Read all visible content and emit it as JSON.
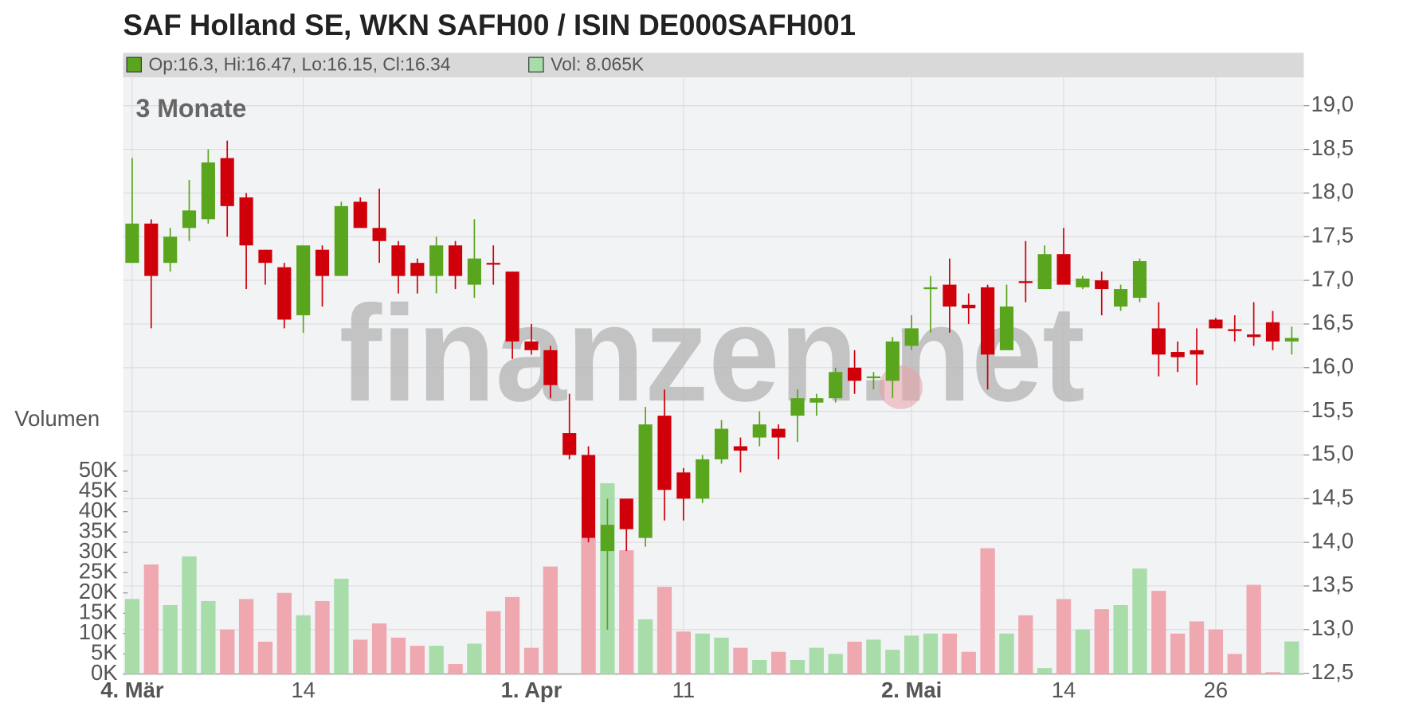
{
  "chart_data": {
    "type": "candlestick",
    "title": "SAF Holland SE, WKN SAFH00 / ISIN DE000SAFH001",
    "legend_ohlc": "Op:16.3, Hi:16.47, Lo:16.15, Cl:16.34",
    "legend_volume": "Vol: 8.065K",
    "period_label": "3 Monate",
    "volume_label": "Volumen",
    "watermark": "finanzen.net",
    "categories": [
      "4. Mär",
      null,
      null,
      null,
      null,
      null,
      null,
      null,
      null,
      "14",
      null,
      null,
      null,
      null,
      null,
      null,
      null,
      null,
      null,
      null,
      null,
      "1. Apr",
      null,
      null,
      null,
      null,
      null,
      null,
      null,
      "11",
      null,
      null,
      null,
      null,
      null,
      null,
      null,
      null,
      null,
      null,
      null,
      "2. Mai",
      null,
      null,
      null,
      null,
      null,
      null,
      null,
      "14",
      null,
      null,
      null,
      null,
      null,
      null,
      null,
      "26",
      null,
      null,
      null,
      null
    ],
    "open": [
      17.2,
      17.65,
      17.2,
      17.6,
      17.7,
      18.4,
      17.95,
      17.35,
      17.15,
      16.6,
      17.35,
      17.05,
      17.9,
      17.6,
      17.4,
      17.2,
      17.05,
      17.4,
      16.95,
      17.2,
      17.1,
      16.3,
      16.2,
      15.25,
      15.0,
      13.9,
      14.5,
      14.05,
      15.45,
      14.8,
      14.5,
      14.95,
      15.1,
      15.2,
      15.3,
      15.45,
      15.6,
      15.65,
      16.0,
      15.88,
      15.85,
      16.25,
      16.9,
      16.95,
      16.72,
      16.92,
      16.2,
      16.99,
      16.9,
      17.3,
      16.92,
      17.0,
      16.7,
      16.8,
      16.45,
      16.18,
      16.2,
      16.55,
      16.44,
      16.38,
      16.52,
      16.3
    ],
    "high": [
      18.4,
      17.7,
      17.6,
      18.15,
      18.5,
      18.6,
      18.0,
      17.35,
      17.2,
      17.4,
      17.4,
      17.9,
      17.95,
      18.05,
      17.45,
      17.25,
      17.5,
      17.45,
      17.7,
      17.4,
      17.1,
      16.5,
      16.25,
      15.7,
      15.1,
      14.5,
      14.5,
      15.55,
      15.75,
      14.85,
      15.0,
      15.4,
      15.2,
      15.5,
      15.35,
      15.75,
      15.7,
      16.0,
      16.2,
      15.95,
      16.35,
      16.6,
      17.05,
      17.25,
      16.85,
      16.95,
      16.95,
      17.45,
      17.4,
      17.6,
      17.05,
      17.1,
      16.95,
      17.25,
      16.75,
      16.3,
      16.45,
      16.57,
      16.6,
      16.75,
      16.65,
      16.47
    ],
    "low": [
      17.2,
      16.45,
      17.1,
      17.45,
      17.65,
      17.5,
      16.9,
      16.95,
      16.45,
      16.4,
      16.7,
      17.05,
      17.6,
      17.2,
      16.85,
      16.85,
      16.85,
      16.9,
      16.8,
      16.95,
      16.1,
      16.15,
      15.65,
      14.95,
      14.0,
      13.0,
      13.9,
      13.95,
      14.25,
      14.25,
      14.45,
      14.9,
      14.8,
      15.1,
      14.95,
      15.15,
      15.45,
      15.6,
      15.7,
      15.75,
      15.65,
      16.2,
      16.4,
      16.4,
      16.5,
      15.75,
      16.2,
      16.75,
      16.9,
      16.95,
      16.9,
      16.6,
      16.65,
      16.75,
      15.9,
      15.95,
      15.8,
      16.45,
      16.3,
      16.25,
      16.2,
      16.15
    ],
    "close": [
      17.65,
      17.05,
      17.5,
      17.8,
      18.35,
      17.85,
      17.4,
      17.2,
      16.55,
      17.4,
      17.05,
      17.85,
      17.6,
      17.45,
      17.05,
      17.05,
      17.4,
      17.05,
      17.25,
      17.18,
      16.3,
      16.2,
      15.8,
      15.0,
      14.05,
      14.2,
      14.15,
      15.35,
      14.6,
      14.5,
      14.95,
      15.3,
      15.05,
      15.35,
      15.2,
      15.65,
      15.65,
      15.95,
      15.85,
      15.9,
      16.3,
      16.45,
      16.92,
      16.7,
      16.68,
      16.15,
      16.7,
      16.97,
      17.3,
      16.95,
      17.02,
      16.9,
      16.9,
      17.22,
      16.15,
      16.12,
      16.15,
      16.45,
      16.43,
      16.35,
      16.3,
      16.34
    ],
    "volume": [
      18.5,
      27,
      17,
      29,
      18,
      11,
      18.5,
      8,
      20,
      14.5,
      18,
      23.5,
      8.5,
      12.5,
      9,
      7,
      7,
      2.5,
      7.5,
      15.5,
      19,
      6.5,
      26.5,
      null,
      33.5,
      47,
      30.5,
      13.5,
      21.5,
      10.5,
      10,
      9,
      6.5,
      3.5,
      5.5,
      3.5,
      6.5,
      5,
      8,
      8.5,
      6,
      9.5,
      10,
      10,
      5.5,
      31,
      10,
      14.5,
      1.5,
      18.5,
      11,
      16,
      17,
      26,
      20.5,
      10,
      13,
      11,
      5,
      22,
      0.5,
      8.065
    ],
    "up_color": "#5aa51e",
    "down_color": "#d0000a",
    "volume_up_color": "#a8dca8",
    "volume_down_color": "#f0a8b0",
    "ylim": [
      12.5,
      19.0
    ],
    "yticks": [
      {
        "value": 12.5,
        "label": "12,5"
      },
      {
        "value": 13.0,
        "label": "13,0"
      },
      {
        "value": 13.5,
        "label": "13,5"
      },
      {
        "value": 14.0,
        "label": "14,0"
      },
      {
        "value": 14.5,
        "label": "14,5"
      },
      {
        "value": 15.0,
        "label": "15,0"
      },
      {
        "value": 15.5,
        "label": "15,5"
      },
      {
        "value": 16.0,
        "label": "16,0"
      },
      {
        "value": 16.5,
        "label": "16,5"
      },
      {
        "value": 17.0,
        "label": "17,0"
      },
      {
        "value": 17.5,
        "label": "17,5"
      },
      {
        "value": 18.0,
        "label": "18,0"
      },
      {
        "value": 18.5,
        "label": "18,5"
      },
      {
        "value": 19.0,
        "label": "19,0"
      }
    ],
    "y2lim": [
      0,
      50
    ],
    "y2ticks": [
      {
        "value": 0,
        "label": "0K"
      },
      {
        "value": 5,
        "label": "5K"
      },
      {
        "value": 10,
        "label": "10K"
      },
      {
        "value": 15,
        "label": "15K"
      },
      {
        "value": 20,
        "label": "20K"
      },
      {
        "value": 25,
        "label": "25K"
      },
      {
        "value": 30,
        "label": "30K"
      },
      {
        "value": 35,
        "label": "35K"
      },
      {
        "value": 40,
        "label": "40K"
      },
      {
        "value": 45,
        "label": "45K"
      },
      {
        "value": 50,
        "label": "50K"
      }
    ],
    "grid": true
  }
}
